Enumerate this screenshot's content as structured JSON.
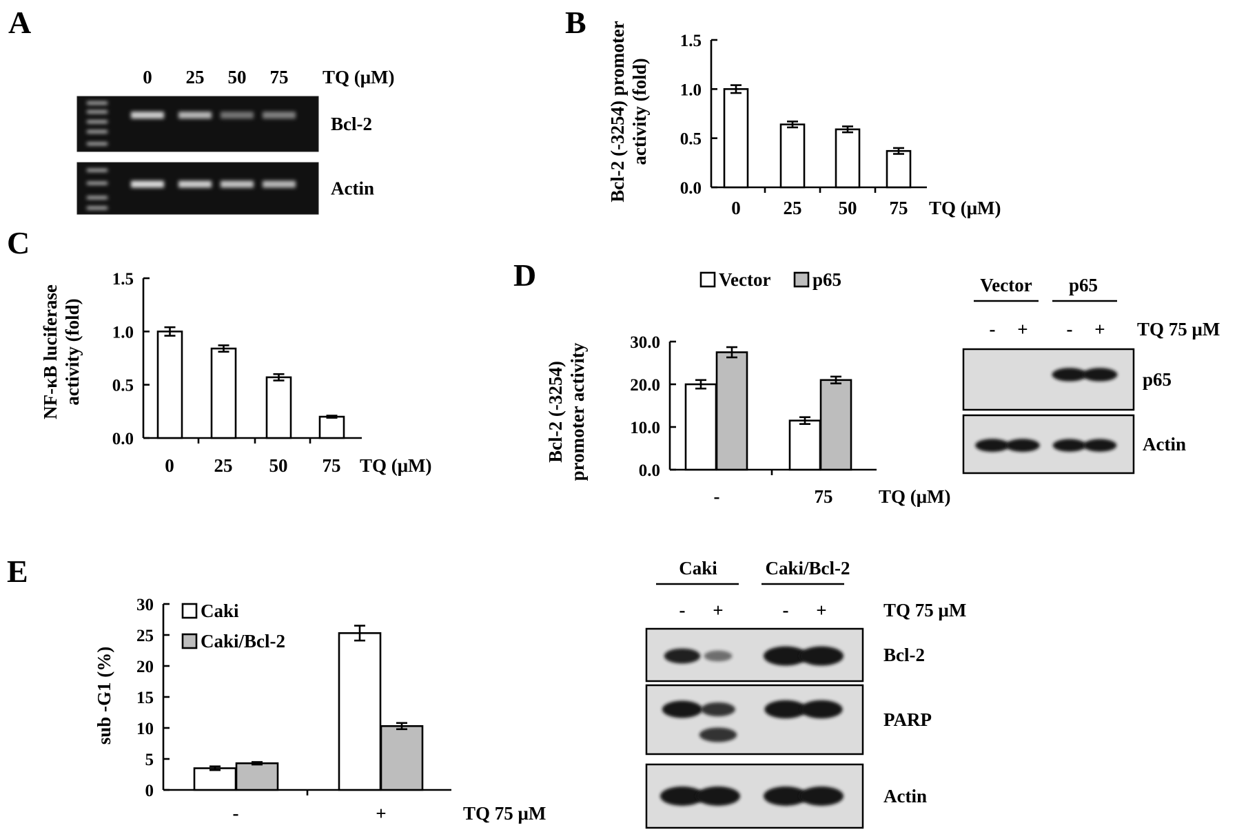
{
  "panels": {
    "A": {
      "letter": "A",
      "lanes": [
        "0",
        "25",
        "50",
        "75"
      ],
      "unit": "TQ (μM)",
      "rows": [
        {
          "label": "Bcl-2",
          "bands": [
            0.85,
            0.75,
            0.45,
            0.5
          ]
        },
        {
          "label": "Actin",
          "bands": [
            0.9,
            0.85,
            0.8,
            0.75
          ]
        }
      ]
    },
    "B": {
      "letter": "B"
    },
    "C": {
      "letter": "C"
    },
    "D": {
      "letter": "D",
      "blot": {
        "groups": [
          "Vector",
          "p65"
        ],
        "lanes": [
          "-",
          "+",
          "-",
          "+"
        ],
        "treatment": "TQ 75 μM",
        "rows": [
          {
            "label": "p65",
            "bands": [
              0,
              0,
              0.95,
              0.95
            ]
          },
          {
            "label": "Actin",
            "bands": [
              0.9,
              0.9,
              0.85,
              0.85
            ]
          }
        ]
      }
    },
    "E": {
      "letter": "E",
      "blot": {
        "groups": [
          "Caki",
          "Caki/Bcl-2"
        ],
        "lanes": [
          "-",
          "+",
          "-",
          "+"
        ],
        "treatment": "TQ 75 μM",
        "rows": [
          {
            "label": "Bcl-2",
            "bands": [
              0.6,
              0.2,
              1.0,
              1.0
            ]
          },
          {
            "label": "PARP",
            "bands": [
              0.8,
              0.5,
              0.9,
              0.9
            ],
            "cleaved": [
              0,
              0.85,
              0,
              0
            ]
          },
          {
            "label": "Actin",
            "bands": [
              1.0,
              1.0,
              1.0,
              1.0
            ]
          }
        ]
      }
    }
  },
  "chart_data": [
    {
      "panel": "B",
      "type": "bar",
      "categories": [
        "0",
        "25",
        "50",
        "75"
      ],
      "values": [
        1.0,
        0.64,
        0.59,
        0.37
      ],
      "errors": [
        0.04,
        0.03,
        0.03,
        0.03
      ],
      "ylabel": "Bcl-2 (-3254) promoter activity (fold)",
      "ylabel_lines": [
        "Bcl-2 (-3254) promoter",
        "activity (fold)"
      ],
      "xlabel": "TQ (μM)",
      "yticks": [
        "0.0",
        "0.5",
        "1.0",
        "1.5"
      ],
      "ylim": [
        0,
        1.5
      ],
      "bar_color": "#ffffff"
    },
    {
      "panel": "C",
      "type": "bar",
      "categories": [
        "0",
        "25",
        "50",
        "75"
      ],
      "values": [
        1.0,
        0.84,
        0.57,
        0.2
      ],
      "errors": [
        0.04,
        0.03,
        0.03,
        0.01
      ],
      "ylabel": "NF-κB luciferase activity (fold)",
      "ylabel_lines": [
        "NF-κB luciferase",
        "activity (fold)"
      ],
      "xlabel": "TQ (μM)",
      "yticks": [
        "0.0",
        "0.5",
        "1.0",
        "1.5"
      ],
      "ylim": [
        0,
        1.5
      ],
      "bar_color": "#ffffff"
    },
    {
      "panel": "D",
      "type": "bar",
      "categories": [
        "-",
        "75"
      ],
      "series": [
        {
          "name": "Vector",
          "values": [
            20.0,
            11.5
          ],
          "errors": [
            1.0,
            0.8
          ],
          "color": "#ffffff"
        },
        {
          "name": "p65",
          "values": [
            27.5,
            21.0
          ],
          "errors": [
            1.2,
            0.8
          ],
          "color": "#bdbdbd"
        }
      ],
      "ylabel": "Bcl-2 (-3254) promoter activity",
      "ylabel_lines": [
        "Bcl-2 (-3254)",
        "promoter activity"
      ],
      "xlabel": "TQ (μM)",
      "yticks": [
        "0.0",
        "10.0",
        "20.0",
        "30.0"
      ],
      "ylim": [
        0,
        30
      ],
      "legend": "top"
    },
    {
      "panel": "E",
      "type": "bar",
      "categories": [
        "-",
        "+"
      ],
      "series": [
        {
          "name": "Caki",
          "values": [
            3.5,
            25.3
          ],
          "errors": [
            0.3,
            1.2
          ],
          "color": "#ffffff"
        },
        {
          "name": "Caki/Bcl-2",
          "values": [
            4.3,
            10.3
          ],
          "errors": [
            0.2,
            0.5
          ],
          "color": "#bdbdbd"
        }
      ],
      "ylabel": "sub -G1 (%)",
      "xlabel": "TQ 75 μM",
      "yticks": [
        "0",
        "5",
        "10",
        "15",
        "20",
        "25",
        "30"
      ],
      "ylim": [
        0,
        30
      ],
      "legend": "top-left"
    }
  ]
}
